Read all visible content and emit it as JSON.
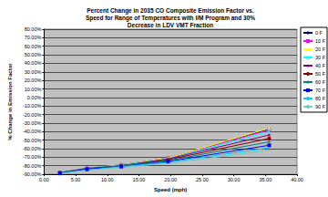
{
  "chart_data": {
    "type": "line",
    "title": "Percent Change in 2035 CO Composite Emission Factor vs.\nSpeed for Range of Temperatures with I/M Program and 30%\nDecrease in LDV VMT Fraction",
    "x_label": "Speed (mph)",
    "y_label": "% Change in Emission Factor",
    "x": [
      2.5,
      6.8,
      12.2,
      19.6,
      35.6
    ],
    "series": [
      {
        "name": "0 F",
        "color": "#000080",
        "marker": "diamond",
        "values": [
          -88,
          -83,
          -79,
          -71,
          -37
        ]
      },
      {
        "name": "10 F",
        "color": "#FF00FF",
        "marker": "square",
        "values": [
          -88,
          -83,
          -79,
          -71,
          -38
        ]
      },
      {
        "name": "20 F",
        "color": "#FFFF00",
        "marker": "triangle",
        "values": [
          -88,
          -83,
          -79,
          -71,
          -36
        ]
      },
      {
        "name": "30 F",
        "color": "#00FFFF",
        "marker": "cross",
        "values": [
          -88,
          -83,
          -79,
          -72,
          -40
        ]
      },
      {
        "name": "40 F",
        "color": "#800080",
        "marker": "star",
        "values": [
          -88,
          -83,
          -80,
          -72,
          -44
        ]
      },
      {
        "name": "50 F",
        "color": "#800000",
        "marker": "circle",
        "values": [
          -88,
          -84,
          -80,
          -73,
          -48
        ]
      },
      {
        "name": "60 F",
        "color": "#008080",
        "marker": "plus",
        "values": [
          -88,
          -84,
          -80,
          -74,
          -52
        ]
      },
      {
        "name": "70 F",
        "color": "#0000FF",
        "marker": "dash",
        "values": [
          -89,
          -84,
          -81,
          -75,
          -56
        ]
      },
      {
        "name": "80 F",
        "color": "#00CCFF",
        "marker": "none",
        "values": [
          -89,
          -85,
          -81,
          -76,
          -59
        ]
      },
      {
        "name": "90 F",
        "color": "#66CCCC",
        "marker": "none",
        "values": [
          -89,
          -85,
          -82,
          -77,
          -62
        ]
      }
    ],
    "xlim": [
      0,
      40
    ],
    "xticks": [
      {
        "value": 0,
        "label": "0.00"
      },
      {
        "value": 5,
        "label": "5.00"
      },
      {
        "value": 10,
        "label": "10.00"
      },
      {
        "value": 15,
        "label": "15.00"
      },
      {
        "value": 20,
        "label": "20.00"
      },
      {
        "value": 25,
        "label": "25.00"
      },
      {
        "value": 30,
        "label": "30.00"
      },
      {
        "value": 35,
        "label": "35.00"
      },
      {
        "value": 40,
        "label": "40.00"
      }
    ],
    "ylim": [
      -90,
      80
    ],
    "yticks": [
      {
        "value": -90,
        "label": "-90.00%"
      },
      {
        "value": -80,
        "label": "-80.00%"
      },
      {
        "value": -70,
        "label": "-70.00%"
      },
      {
        "value": -60,
        "label": "-60.00%"
      },
      {
        "value": -50,
        "label": "-50.00%"
      },
      {
        "value": -40,
        "label": "-40.00%"
      },
      {
        "value": -30,
        "label": "-30.00%"
      },
      {
        "value": -20,
        "label": "-20.00%"
      },
      {
        "value": -10,
        "label": "-10.00%"
      },
      {
        "value": 0,
        "label": "0.00%"
      },
      {
        "value": 10,
        "label": "10.00%"
      },
      {
        "value": 20,
        "label": "20.00%"
      },
      {
        "value": 30,
        "label": "30.00%"
      },
      {
        "value": 40,
        "label": "40.00%"
      },
      {
        "value": 50,
        "label": "50.00%"
      },
      {
        "value": 60,
        "label": "60.00%"
      },
      {
        "value": 70,
        "label": "70.00%"
      },
      {
        "value": 80,
        "label": "80.00%"
      }
    ],
    "grid": true,
    "legend": "right"
  }
}
